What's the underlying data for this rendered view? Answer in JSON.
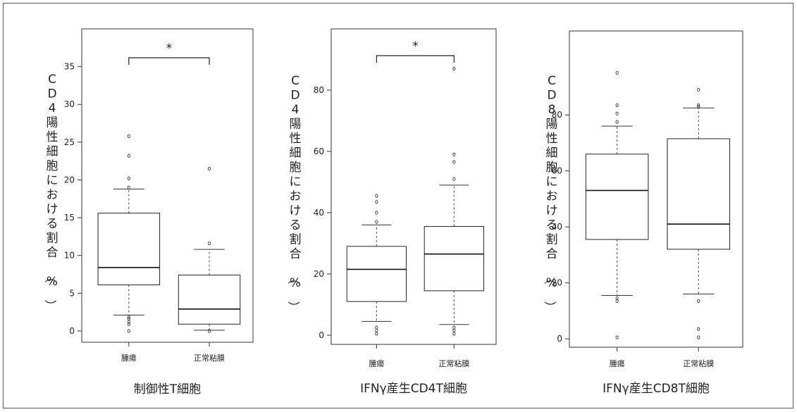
{
  "chart_data": [
    {
      "type": "box",
      "xlabel": "制御性T細胞",
      "ylabel": "CD4陽性細胞における割合（%）",
      "ylim": [
        -1.5,
        40
      ],
      "yticks": [
        0,
        5,
        10,
        15,
        20,
        25,
        30,
        35
      ],
      "categories": [
        "腫瘍",
        "正常粘膜"
      ],
      "boxes": [
        {
          "category": "腫瘍",
          "whisker_low": 2.1,
          "q1": 6.1,
          "median": 8.4,
          "q3": 15.6,
          "whisker_high": 18.8,
          "outliers": [
            1.8,
            1.6,
            1.2,
            0.9,
            0.0,
            19.0,
            20.2,
            23.2,
            25.8
          ]
        },
        {
          "category": "正常粘膜",
          "whisker_low": 0.1,
          "q1": 0.9,
          "median": 2.9,
          "q3": 7.4,
          "whisker_high": 10.8,
          "outliers": [
            0.0,
            11.6,
            21.5
          ]
        }
      ],
      "significance": [
        {
          "pair": [
            "腫瘍",
            "正常粘膜"
          ],
          "label": "*"
        }
      ]
    },
    {
      "type": "box",
      "xlabel": "IFNγ産生CD4T細胞",
      "ylabel": "CD4陽性細胞における割合（%）",
      "ylim": [
        -3,
        100
      ],
      "yticks": [
        0,
        20,
        40,
        60,
        80
      ],
      "categories": [
        "腫瘍",
        "正常粘膜"
      ],
      "boxes": [
        {
          "category": "腫瘍",
          "whisker_low": 4.5,
          "q1": 11,
          "median": 21.5,
          "q3": 29,
          "whisker_high": 36,
          "outliers": [
            0.5,
            1.5,
            2.5,
            37,
            40,
            43.5,
            45.5
          ]
        },
        {
          "category": "正常粘膜",
          "whisker_low": 3.5,
          "q1": 14.5,
          "median": 26.5,
          "q3": 35.5,
          "whisker_high": 49,
          "outliers": [
            0.5,
            1.5,
            2.5,
            51,
            56.5,
            59,
            87
          ]
        }
      ],
      "significance": [
        {
          "pair": [
            "腫瘍",
            "正常粘膜"
          ],
          "label": "*"
        }
      ]
    },
    {
      "type": "box",
      "xlabel": "IFNγ産生CD8T細胞",
      "ylabel": "CD8陽性細胞における割合（%）",
      "ylim": [
        -3,
        110
      ],
      "yticks": [
        0,
        20,
        40,
        60,
        80
      ],
      "categories": [
        "腫瘍",
        "正常粘膜"
      ],
      "boxes": [
        {
          "category": "腫瘍",
          "whisker_low": 15.5,
          "q1": 35.5,
          "median": 53,
          "q3": 66,
          "whisker_high": 76,
          "outliers": [
            0.5,
            13.5,
            14.5,
            77.5,
            80.5,
            83.5,
            95
          ]
        },
        {
          "category": "正常粘膜",
          "whisker_low": 16,
          "q1": 32,
          "median": 41,
          "q3": 71.5,
          "whisker_high": 82.5,
          "outliers": [
            0.5,
            3.5,
            13.5,
            83,
            83.5,
            89
          ]
        }
      ],
      "significance": []
    }
  ]
}
